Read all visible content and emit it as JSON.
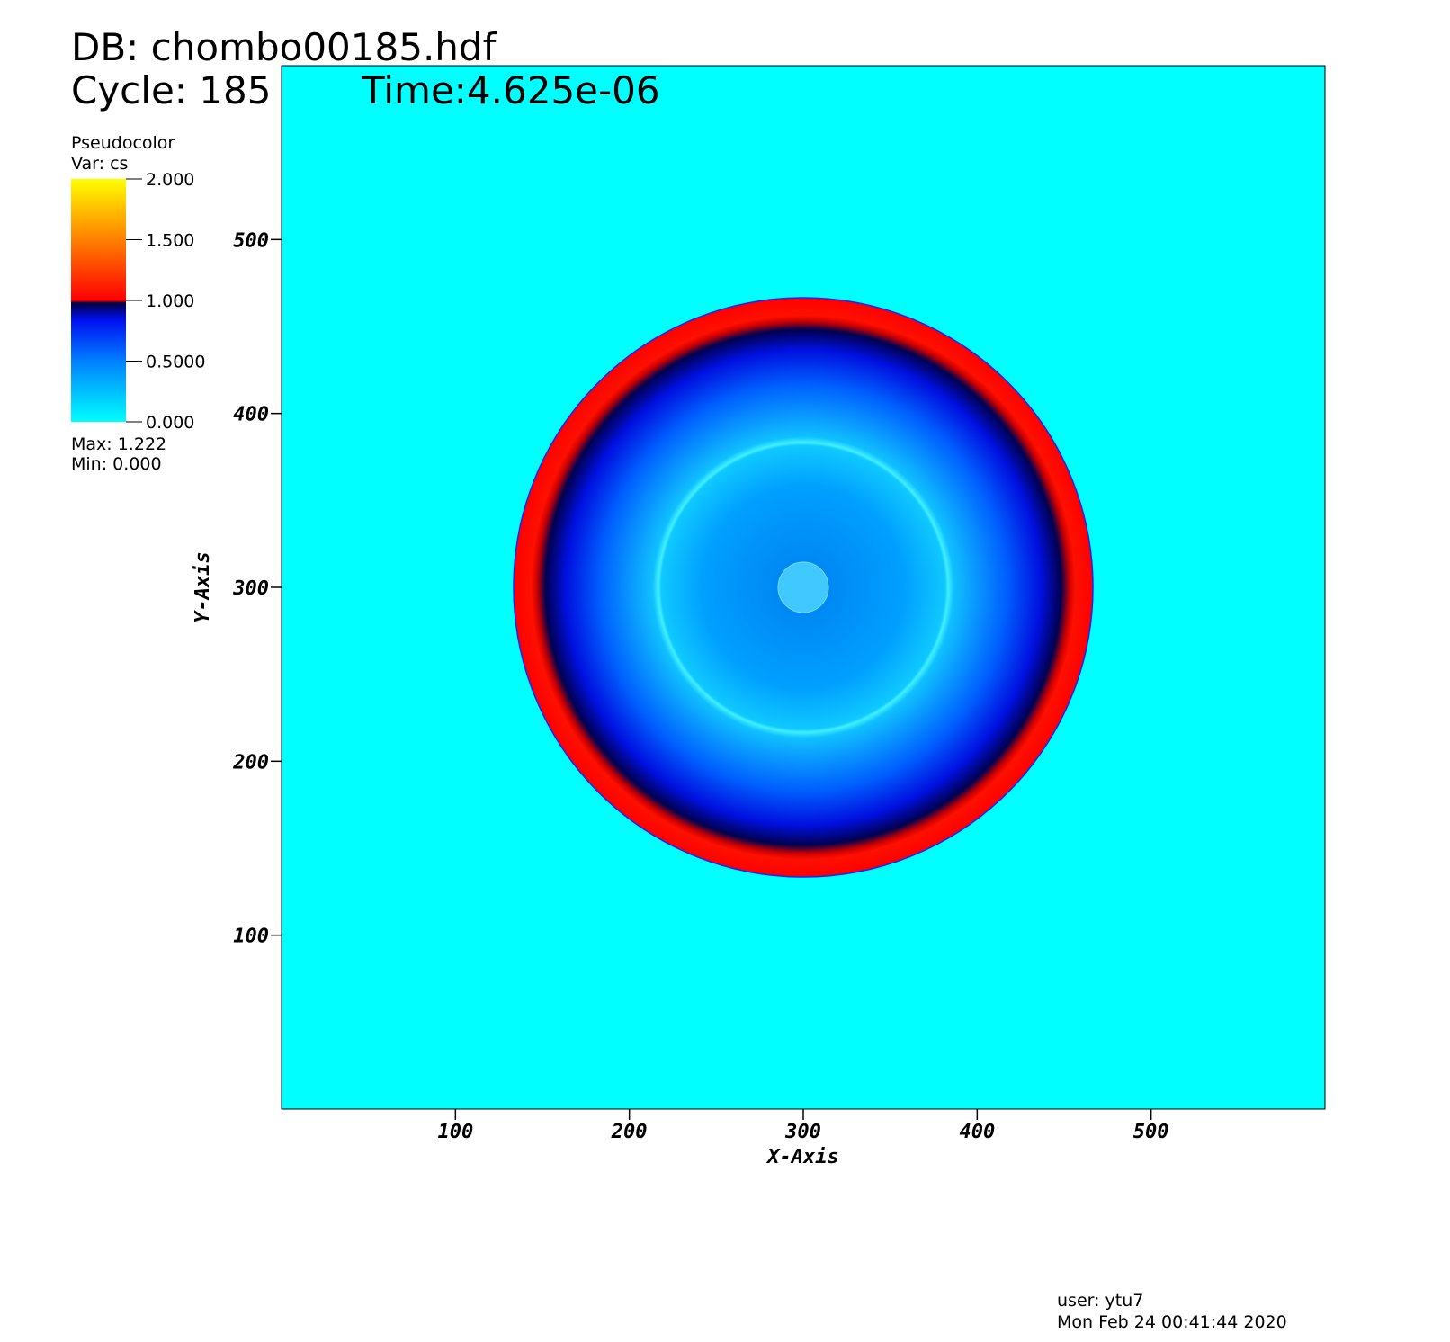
{
  "chart_data": {
    "type": "pseudocolor",
    "title_lines": [
      "DB: chombo00185.hdf",
      "Cycle: 185",
      "Time:4.625e-06"
    ],
    "legend_title": "Pseudocolor",
    "legend_var": "Var: cs",
    "colorbar_lim": [
      0,
      2
    ],
    "colorbar_ticks": [
      {
        "value": 0,
        "label": "0.000"
      },
      {
        "value": 0.5,
        "label": "0.5000"
      },
      {
        "value": 1,
        "label": "1.000"
      },
      {
        "value": 1.5,
        "label": "1.500"
      },
      {
        "value": 2,
        "label": "2.000"
      }
    ],
    "max_label": "Max:  1.222",
    "min_label": "Min:  0.000",
    "x_label": "X-Axis",
    "y_label": "Y-Axis",
    "xlim": [
      0,
      600
    ],
    "ylim": [
      0,
      600
    ],
    "xticks": [
      100,
      200,
      300,
      400,
      500
    ],
    "yticks": [
      100,
      200,
      300,
      400,
      500
    ],
    "user": "user: ytu7",
    "timestamp": "Mon Feb 24 00:41:44 2020"
  }
}
